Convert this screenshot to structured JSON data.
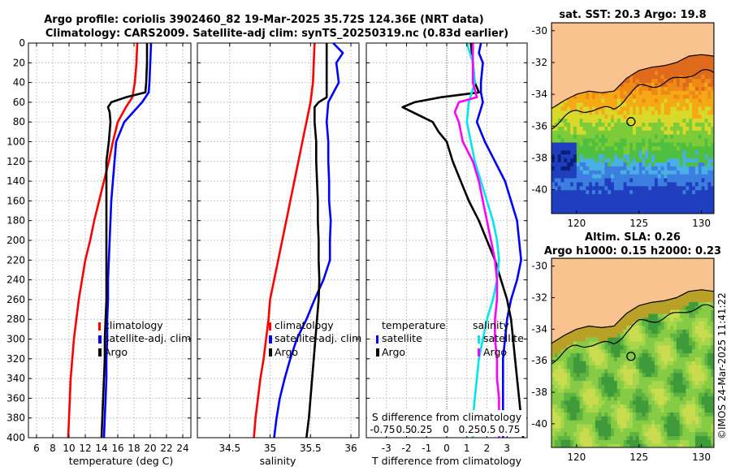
{
  "header": {
    "title_line1": "Argo profile: coriolis 3902460_82 19-Mar-2025 35.72S 124.36E (NRT data)",
    "title_line2": "Climatology: CARS2009. Satellite-adj clim: synTS_20250319.nc (0.83d earlier)"
  },
  "credit": "©IMOS 24-Mar-2025 11:41:22",
  "colors": {
    "climatology": "#ff0000",
    "satellite": "#0000ff",
    "argo": "#000000",
    "sat_salinity": "#00e5ee",
    "argo_salinity": "#ff00ff",
    "land": "#f9c38f",
    "grid": "#c8c8c8",
    "zero_line": "#555555"
  },
  "chart_data": [
    {
      "id": "temperature",
      "type": "line",
      "xlabel": "temperature (deg C)",
      "ylabel": "",
      "xlim": [
        5,
        25
      ],
      "ylim": [
        0,
        400
      ],
      "xticks": [
        6,
        8,
        10,
        12,
        14,
        16,
        18,
        20,
        22,
        24
      ],
      "yticks": [
        0,
        20,
        40,
        60,
        80,
        100,
        120,
        140,
        160,
        180,
        200,
        220,
        240,
        260,
        280,
        300,
        320,
        340,
        360,
        380,
        400
      ],
      "legend": [
        "climatology",
        "satellite-adj. clim",
        "Argo"
      ],
      "series": [
        {
          "name": "climatology",
          "color": "#ff0000",
          "depth": [
            0,
            20,
            40,
            55,
            65,
            80,
            100,
            120,
            140,
            160,
            180,
            200,
            220,
            240,
            260,
            280,
            300,
            320,
            340,
            360,
            380,
            400
          ],
          "values": [
            18.4,
            18.3,
            18.1,
            17.8,
            17.0,
            16.0,
            15.4,
            14.9,
            14.3,
            13.7,
            13.1,
            12.6,
            12.0,
            11.6,
            11.2,
            10.9,
            10.6,
            10.4,
            10.2,
            10.1,
            10.0,
            9.9
          ]
        },
        {
          "name": "satellite-adj. clim",
          "color": "#0000ff",
          "depth": [
            0,
            20,
            40,
            50,
            60,
            80,
            100,
            120,
            140,
            160,
            180,
            200,
            220,
            240,
            260,
            280,
            300,
            320,
            340,
            360,
            380,
            400
          ],
          "values": [
            20.1,
            20.0,
            19.9,
            19.8,
            19.0,
            16.8,
            15.8,
            15.6,
            15.4,
            15.2,
            15.1,
            15.0,
            14.9,
            14.8,
            14.8,
            14.7,
            14.7,
            14.6,
            14.6,
            14.5,
            14.4,
            14.3
          ]
        },
        {
          "name": "Argo",
          "color": "#000000",
          "depth": [
            0,
            20,
            40,
            50,
            55,
            60,
            65,
            70,
            80,
            100,
            120,
            140,
            160,
            180,
            200,
            220,
            240,
            260,
            280,
            300,
            320,
            340,
            360,
            380,
            400
          ],
          "values": [
            19.6,
            19.6,
            19.5,
            19.4,
            17.0,
            15.2,
            14.8,
            15.0,
            15.1,
            14.9,
            14.6,
            14.6,
            14.6,
            14.6,
            14.6,
            14.6,
            14.6,
            14.6,
            14.5,
            14.4,
            14.4,
            14.3,
            14.2,
            14.1,
            14.0
          ]
        }
      ]
    },
    {
      "id": "salinity",
      "type": "line",
      "xlabel": "salinity",
      "xlim": [
        34.1,
        36.1
      ],
      "ylim": [
        0,
        400
      ],
      "xticks": [
        34.5,
        35,
        35.5,
        36
      ],
      "legend": [
        "climatology",
        "satellite-adj. clim",
        "Argo"
      ],
      "series": [
        {
          "name": "climatology",
          "color": "#ff0000",
          "depth": [
            0,
            20,
            40,
            60,
            80,
            100,
            120,
            140,
            160,
            180,
            200,
            220,
            240,
            260,
            280,
            300,
            320,
            340,
            360,
            380,
            400
          ],
          "values": [
            35.55,
            35.54,
            35.53,
            35.5,
            35.45,
            35.4,
            35.35,
            35.3,
            35.25,
            35.2,
            35.15,
            35.1,
            35.05,
            35.0,
            34.98,
            34.95,
            34.92,
            34.88,
            34.85,
            34.82,
            34.8
          ]
        },
        {
          "name": "satellite-adj. clim",
          "color": "#0000ff",
          "depth": [
            0,
            10,
            20,
            40,
            60,
            80,
            100,
            120,
            140,
            160,
            180,
            200,
            220,
            240,
            260,
            280,
            300,
            320,
            340,
            360,
            380,
            400
          ],
          "values": [
            35.78,
            35.9,
            35.82,
            35.85,
            35.72,
            35.7,
            35.72,
            35.72,
            35.73,
            35.73,
            35.75,
            35.74,
            35.74,
            35.66,
            35.55,
            35.45,
            35.33,
            35.25,
            35.18,
            35.12,
            35.08,
            35.05
          ]
        },
        {
          "name": "Argo",
          "color": "#000000",
          "depth": [
            0,
            20,
            40,
            55,
            60,
            65,
            80,
            100,
            120,
            140,
            160,
            180,
            200,
            220,
            240,
            260,
            280,
            300,
            320,
            340,
            360,
            380,
            400
          ],
          "values": [
            35.7,
            35.7,
            35.7,
            35.7,
            35.6,
            35.55,
            35.55,
            35.57,
            35.57,
            35.58,
            35.59,
            35.59,
            35.6,
            35.6,
            35.61,
            35.6,
            35.58,
            35.56,
            35.54,
            35.52,
            35.5,
            35.48,
            35.45
          ]
        }
      ]
    },
    {
      "id": "difference",
      "type": "line",
      "xlabel": "T difference from climatology",
      "xlabel_top": "S difference from climatology",
      "xlim": [
        -4,
        4
      ],
      "ylim": [
        0,
        400
      ],
      "xticks": [
        -3,
        -2,
        -1,
        0,
        1,
        2,
        3
      ],
      "top_tick_labels": [
        "-0.75",
        "0.5",
        "0.25",
        "0",
        "0.25",
        "0.5",
        "0.75"
      ],
      "legend_left": [
        "temperature",
        "satellite",
        "Argo"
      ],
      "legend_right": [
        "salinity",
        "satellite",
        "Argo"
      ],
      "series": [
        {
          "name": "T satellite",
          "color": "#0000ff",
          "depth": [
            0,
            10,
            20,
            40,
            50,
            60,
            80,
            100,
            120,
            140,
            160,
            180,
            200,
            220,
            240,
            260,
            280,
            300,
            320,
            340,
            360,
            380,
            400
          ],
          "values": [
            1.7,
            1.6,
            1.8,
            1.7,
            1.7,
            1.8,
            1.5,
            1.9,
            2.4,
            2.9,
            3.2,
            3.5,
            3.6,
            3.7,
            3.5,
            3.2,
            3.0,
            2.9,
            2.8,
            2.8,
            2.8,
            2.8,
            2.8
          ]
        },
        {
          "name": "T Argo",
          "color": "#000000",
          "depth": [
            0,
            20,
            40,
            50,
            55,
            60,
            65,
            70,
            80,
            90,
            100,
            120,
            140,
            160,
            180,
            200,
            220,
            240,
            260,
            280,
            300,
            320,
            340,
            360,
            380,
            400
          ],
          "values": [
            1.2,
            1.3,
            1.4,
            1.6,
            -0.3,
            -1.6,
            -2.2,
            -1.7,
            -0.7,
            -0.4,
            0.0,
            0.3,
            0.7,
            1.1,
            1.6,
            2.0,
            2.4,
            2.7,
            3.0,
            3.2,
            3.3,
            3.4,
            3.5,
            3.6,
            3.7,
            3.8
          ]
        },
        {
          "name": "S satellite",
          "color": "#00e5ee",
          "depth": [
            0,
            20,
            40,
            60,
            80,
            100,
            120,
            140,
            160,
            180,
            200,
            220,
            240,
            260,
            280,
            300,
            320,
            340,
            360,
            380,
            400
          ],
          "values": [
            1.0,
            1.3,
            1.4,
            1.1,
            1.0,
            1.2,
            1.4,
            1.7,
            2.0,
            2.3,
            2.5,
            2.6,
            2.5,
            2.3,
            2.0,
            1.8,
            1.6,
            1.5,
            1.4,
            1.3,
            1.3
          ]
        },
        {
          "name": "S Argo",
          "color": "#ff00ff",
          "depth": [
            0,
            20,
            40,
            55,
            60,
            70,
            80,
            100,
            120,
            140,
            160,
            180,
            200,
            220,
            240,
            260,
            280,
            300,
            320,
            340,
            360,
            380,
            400
          ],
          "values": [
            1.3,
            1.3,
            1.3,
            1.5,
            0.6,
            0.4,
            0.6,
            0.8,
            1.3,
            1.6,
            1.8,
            2.0,
            2.2,
            2.4,
            2.5,
            2.5,
            2.4,
            2.4,
            2.5,
            2.5,
            2.6,
            2.6,
            2.6
          ]
        }
      ]
    },
    {
      "id": "sst_map",
      "type": "heatmap",
      "title": "sat. SST: 20.3  Argo: 19.8",
      "xlim": [
        118,
        131
      ],
      "ylim": [
        -41.5,
        -29.5
      ],
      "xticks": [
        120,
        125,
        130
      ],
      "yticks": [
        -30,
        -32,
        -34,
        -36,
        -38,
        -40
      ],
      "marker": {
        "lon": 124.36,
        "lat": -35.72
      }
    },
    {
      "id": "sla_map",
      "type": "heatmap",
      "title_line1": "Altim. SLA: 0.26",
      "title_line2": "Argo h1000: 0.15 h2000: 0.23",
      "xlim": [
        118,
        131
      ],
      "ylim": [
        -41.5,
        -29.5
      ],
      "xticks": [
        120,
        125,
        130
      ],
      "yticks": [
        -30,
        -32,
        -34,
        -36,
        -38,
        -40
      ],
      "marker": {
        "lon": 124.36,
        "lat": -35.72
      }
    }
  ]
}
